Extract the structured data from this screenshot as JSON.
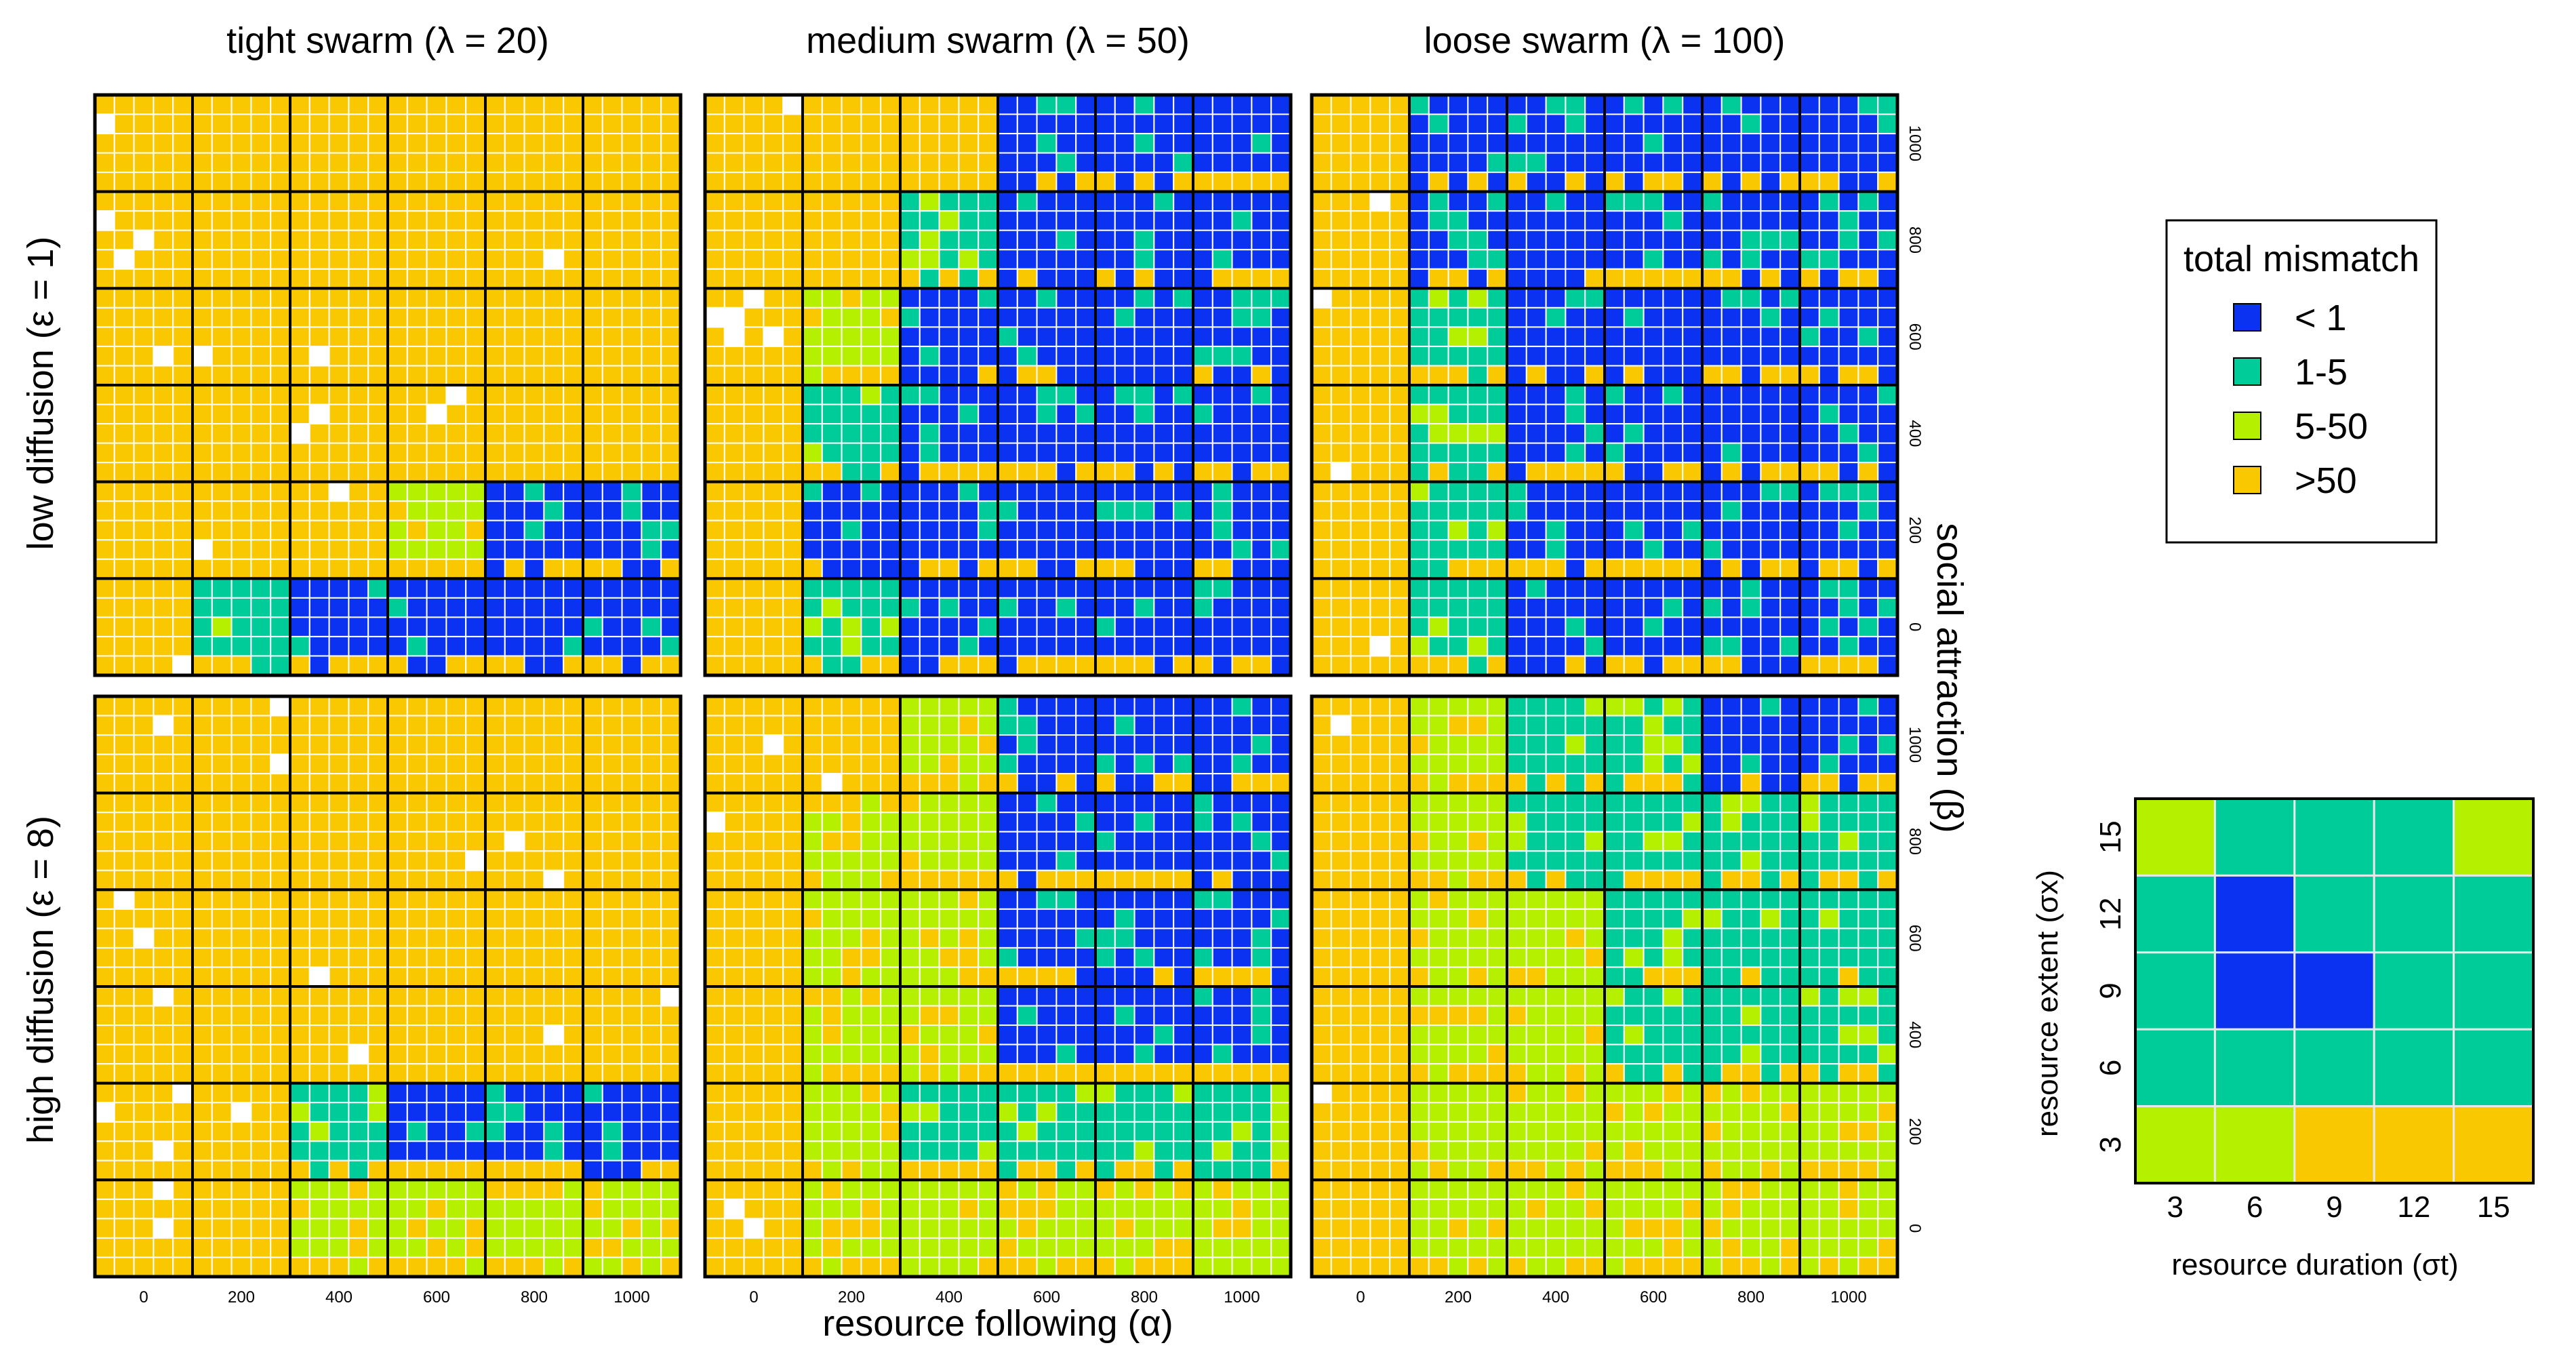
{
  "chart_data": {
    "type": "heatmap",
    "column_titles": [
      "tight swarm  (λ = 20)",
      "medium swarm (λ = 50)",
      "loose swarm (λ = 100)"
    ],
    "row_titles": [
      "low diffusion  (ε = 1)",
      "high diffusion  (ε = 8)"
    ],
    "xlabel": "resource following  (α)",
    "ylabel": "social attraction  (β)",
    "alpha_ticks": [
      "0",
      "200",
      "400",
      "600",
      "800",
      "1000"
    ],
    "beta_ticks": [
      "1000",
      "800",
      "600",
      "400",
      "200",
      "0"
    ],
    "legend": {
      "title": "total mismatch",
      "entries": [
        {
          "label": "< 1",
          "color": "#0a32f0"
        },
        {
          "label": "1-5",
          "color": "#00cc9a"
        },
        {
          "label": "5-50",
          "color": "#b4f000"
        },
        {
          "label": ">50",
          "color": "#fac800"
        }
      ]
    },
    "dominant_category_by_panel": [
      [
        [
          [
            3,
            3,
            3,
            3,
            3,
            3
          ],
          [
            3,
            3,
            3,
            3,
            3,
            3
          ],
          [
            3,
            3,
            3,
            3,
            3,
            3
          ],
          [
            3,
            3,
            3,
            3,
            3,
            3
          ],
          [
            3,
            3,
            3,
            2,
            0,
            0
          ],
          [
            3,
            1,
            0,
            0,
            0,
            0
          ]
        ],
        [
          [
            3,
            3,
            3,
            0,
            0,
            0
          ],
          [
            3,
            3,
            1,
            0,
            0,
            0
          ],
          [
            3,
            2,
            0,
            0,
            0,
            0
          ],
          [
            3,
            1,
            0,
            0,
            0,
            0
          ],
          [
            3,
            0,
            0,
            0,
            0,
            0
          ],
          [
            3,
            1,
            0,
            0,
            0,
            0
          ]
        ],
        [
          [
            3,
            0,
            0,
            0,
            0,
            0
          ],
          [
            3,
            0,
            0,
            0,
            0,
            0
          ],
          [
            3,
            1,
            0,
            0,
            0,
            0
          ],
          [
            3,
            1,
            0,
            0,
            0,
            0
          ],
          [
            3,
            1,
            0,
            0,
            0,
            0
          ],
          [
            3,
            1,
            0,
            0,
            0,
            0
          ]
        ]
      ],
      [
        [
          [
            3,
            3,
            3,
            3,
            3,
            3
          ],
          [
            3,
            3,
            3,
            3,
            3,
            3
          ],
          [
            3,
            3,
            3,
            3,
            3,
            3
          ],
          [
            3,
            3,
            3,
            3,
            3,
            3
          ],
          [
            3,
            3,
            1,
            0,
            0,
            0
          ],
          [
            3,
            3,
            2,
            2,
            2,
            2
          ]
        ],
        [
          [
            3,
            3,
            2,
            0,
            0,
            0
          ],
          [
            3,
            2,
            2,
            0,
            0,
            0
          ],
          [
            3,
            2,
            2,
            0,
            0,
            0
          ],
          [
            3,
            2,
            2,
            0,
            0,
            0
          ],
          [
            3,
            2,
            1,
            1,
            1,
            1
          ],
          [
            3,
            2,
            2,
            2,
            2,
            2
          ]
        ],
        [
          [
            3,
            2,
            1,
            1,
            0,
            0
          ],
          [
            3,
            2,
            1,
            1,
            1,
            1
          ],
          [
            3,
            2,
            2,
            1,
            1,
            1
          ],
          [
            3,
            2,
            2,
            1,
            1,
            1
          ],
          [
            3,
            2,
            2,
            2,
            2,
            2
          ],
          [
            3,
            2,
            2,
            2,
            2,
            2
          ]
        ]
      ]
    ],
    "inset": {
      "xlabel": "resource duration  (σt)",
      "ylabel": "resource extent  (σx)",
      "x": [
        "3",
        "6",
        "9",
        "12",
        "15"
      ],
      "y": [
        "15",
        "12",
        "9",
        "6",
        "3"
      ],
      "categories": [
        [
          2,
          1,
          1,
          1,
          2
        ],
        [
          1,
          0,
          1,
          1,
          1
        ],
        [
          1,
          0,
          0,
          1,
          1
        ],
        [
          1,
          1,
          1,
          1,
          1
        ],
        [
          2,
          2,
          3,
          3,
          3
        ]
      ]
    }
  }
}
